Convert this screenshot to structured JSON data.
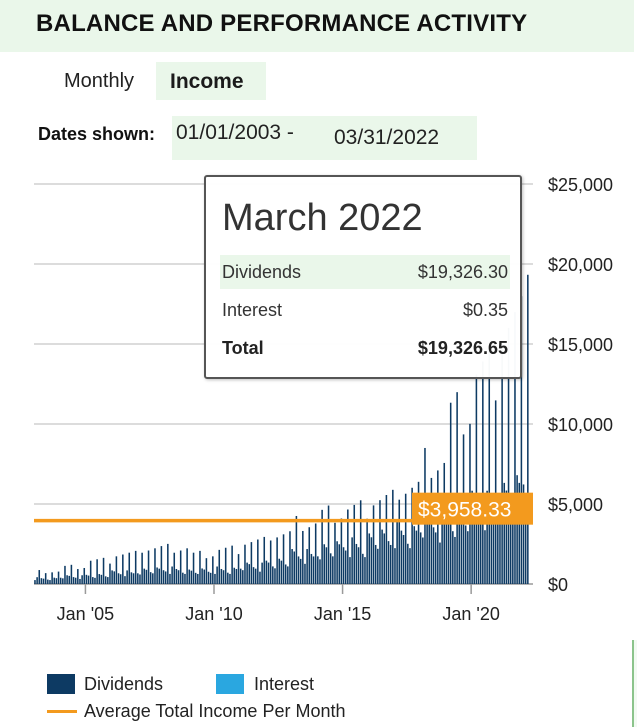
{
  "header": {
    "title": "BALANCE AND PERFORMANCE ACTIVITY"
  },
  "controls": {
    "period": "Monthly",
    "view": "Income",
    "dates_label": "Dates shown:",
    "date_start": "01/01/2003 -",
    "date_end": "03/31/2022"
  },
  "tooltip": {
    "title": "March 2022",
    "rows": [
      {
        "label": "Dividends",
        "value": "$19,326.30"
      },
      {
        "label": "Interest",
        "value": "$0.35"
      },
      {
        "label": "Total",
        "value": "$19,326.65"
      }
    ]
  },
  "legend": {
    "dividends": "Dividends",
    "interest": "Interest",
    "average": "Average Total Income Per Month"
  },
  "colors": {
    "dividends": "#0d3a63",
    "interest": "#2aa7e0",
    "average": "#f39a1e",
    "highlight": "#eaf7ea"
  },
  "chart_data": {
    "type": "bar",
    "title": "",
    "xlabel": "",
    "ylabel": "",
    "ylim": [
      0,
      25000
    ],
    "grid": true,
    "y_ticks": [
      "$0",
      "$5,000",
      "$10,000",
      "$15,000",
      "$20,000",
      "$25,000"
    ],
    "x_ticks": [
      "Jan '05",
      "Jan '10",
      "Jan '15",
      "Jan '20"
    ],
    "x_tick_years": [
      2005,
      2010,
      2015,
      2020
    ],
    "start_year": 2003,
    "end_year": 2022.25,
    "average_value": 3958.33,
    "average_label": "$3,958.33",
    "series": [
      {
        "name": "Dividends",
        "annual_levels": [
          {
            "year": 2003,
            "base": 350,
            "quarterly": 800
          },
          {
            "year": 2004,
            "base": 450,
            "quarterly": 1100
          },
          {
            "year": 2005,
            "base": 550,
            "quarterly": 1500
          },
          {
            "year": 2006,
            "base": 700,
            "quarterly": 1900
          },
          {
            "year": 2007,
            "base": 850,
            "quarterly": 2300
          },
          {
            "year": 2008,
            "base": 900,
            "quarterly": 2300
          },
          {
            "year": 2009,
            "base": 800,
            "quarterly": 1900
          },
          {
            "year": 2010,
            "base": 900,
            "quarterly": 2200
          },
          {
            "year": 2011,
            "base": 1100,
            "quarterly": 2700
          },
          {
            "year": 2012,
            "base": 1400,
            "quarterly": 3200
          },
          {
            "year": 2013,
            "base": 1800,
            "quarterly": 3900
          },
          {
            "year": 2014,
            "base": 2200,
            "quarterly": 4500
          },
          {
            "year": 2015,
            "base": 2400,
            "quarterly": 4800
          },
          {
            "year": 2016,
            "base": 2800,
            "quarterly": 5400
          },
          {
            "year": 2017,
            "base": 3200,
            "quarterly": 6200
          },
          {
            "year": 2018,
            "base": 3700,
            "quarterly": 7800
          },
          {
            "year": 2019,
            "base": 4200,
            "quarterly": 11000
          },
          {
            "year": 2020,
            "base": 4800,
            "quarterly": 13500
          },
          {
            "year": 2021,
            "base": 5600,
            "quarterly": 16500
          },
          {
            "year": 2022,
            "base": 6500,
            "quarterly": 21800
          }
        ]
      },
      {
        "name": "Interest",
        "approx_monthly": 0.35
      }
    ],
    "last_point": {
      "month": "March 2022",
      "value": 19326.65
    }
  }
}
